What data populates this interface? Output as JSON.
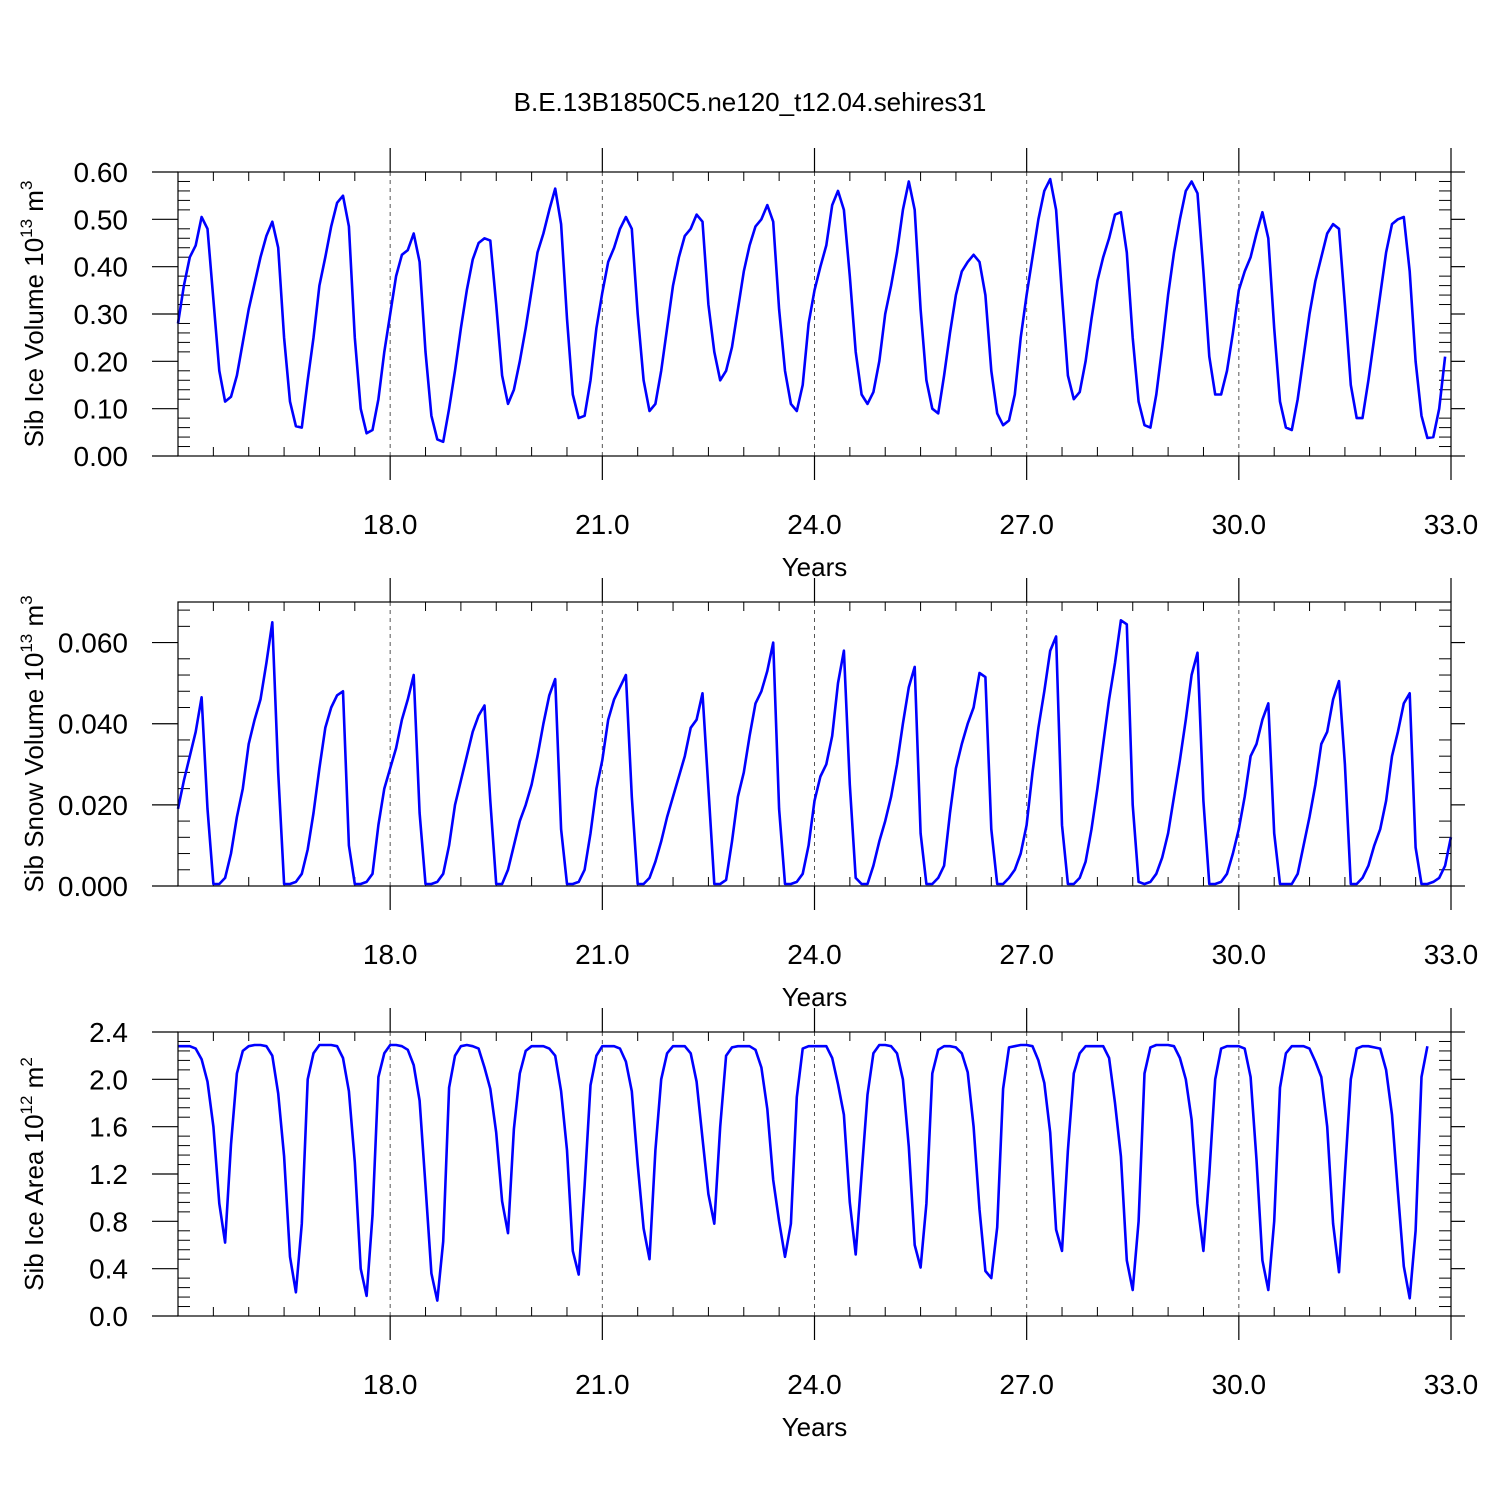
{
  "figure": {
    "title": "B.E.13B1850C5.ne120_t12.04.sehires31"
  },
  "chart_data": [
    {
      "type": "line",
      "ylabel": "Sib Ice Volume 10",
      "ylabel_exp": "13",
      "ylabel_unit": " m",
      "ylabel_unit_exp": "3",
      "xlabel": "Years",
      "xlim": [
        15.0,
        33.0
      ],
      "ylim": [
        0.0,
        0.6
      ],
      "xticks": [
        18.0,
        21.0,
        24.0,
        27.0,
        30.0,
        33.0
      ],
      "xtick_labels": [
        "18.0",
        "21.0",
        "24.0",
        "27.0",
        "30.0",
        "33.0"
      ],
      "yticks": [
        0.0,
        0.1,
        0.2,
        0.3,
        0.4,
        0.5,
        0.6
      ],
      "ytick_labels": [
        "0.00",
        "0.10",
        "0.20",
        "0.30",
        "0.40",
        "0.50",
        "0.60"
      ],
      "grid": "vertical dashed at major x ticks",
      "series": [
        {
          "color": "#0000ff",
          "x_start": 15.0,
          "x_step": 0.08333,
          "values": [
            0.28,
            0.36,
            0.42,
            0.445,
            0.505,
            0.48,
            0.33,
            0.18,
            0.115,
            0.125,
            0.17,
            0.24,
            0.31,
            0.365,
            0.42,
            0.465,
            0.495,
            0.44,
            0.25,
            0.115,
            0.063,
            0.06,
            0.16,
            0.25,
            0.36,
            0.42,
            0.485,
            0.535,
            0.55,
            0.485,
            0.25,
            0.1,
            0.048,
            0.055,
            0.12,
            0.22,
            0.3,
            0.38,
            0.425,
            0.435,
            0.47,
            0.41,
            0.22,
            0.085,
            0.035,
            0.03,
            0.1,
            0.18,
            0.27,
            0.35,
            0.415,
            0.45,
            0.46,
            0.455,
            0.32,
            0.17,
            0.11,
            0.14,
            0.2,
            0.27,
            0.35,
            0.43,
            0.47,
            0.52,
            0.565,
            0.49,
            0.29,
            0.13,
            0.08,
            0.085,
            0.16,
            0.27,
            0.345,
            0.41,
            0.44,
            0.48,
            0.505,
            0.48,
            0.3,
            0.16,
            0.095,
            0.11,
            0.18,
            0.27,
            0.36,
            0.42,
            0.465,
            0.48,
            0.51,
            0.495,
            0.32,
            0.22,
            0.16,
            0.18,
            0.23,
            0.31,
            0.39,
            0.445,
            0.485,
            0.5,
            0.53,
            0.495,
            0.31,
            0.18,
            0.11,
            0.095,
            0.15,
            0.28,
            0.35,
            0.4,
            0.445,
            0.53,
            0.56,
            0.52,
            0.38,
            0.22,
            0.13,
            0.11,
            0.135,
            0.2,
            0.3,
            0.36,
            0.43,
            0.52,
            0.58,
            0.52,
            0.31,
            0.16,
            0.1,
            0.09,
            0.17,
            0.26,
            0.34,
            0.39,
            0.41,
            0.425,
            0.41,
            0.34,
            0.18,
            0.09,
            0.065,
            0.075,
            0.13,
            0.25,
            0.34,
            0.42,
            0.5,
            0.56,
            0.585,
            0.52,
            0.34,
            0.17,
            0.12,
            0.135,
            0.2,
            0.29,
            0.37,
            0.42,
            0.46,
            0.51,
            0.515,
            0.43,
            0.25,
            0.115,
            0.065,
            0.06,
            0.13,
            0.23,
            0.34,
            0.43,
            0.5,
            0.56,
            0.58,
            0.555,
            0.39,
            0.21,
            0.13,
            0.13,
            0.18,
            0.26,
            0.35,
            0.39,
            0.42,
            0.47,
            0.515,
            0.46,
            0.27,
            0.115,
            0.06,
            0.055,
            0.12,
            0.21,
            0.3,
            0.37,
            0.42,
            0.47,
            0.49,
            0.48,
            0.32,
            0.15,
            0.08,
            0.08,
            0.16,
            0.25,
            0.34,
            0.43,
            0.49,
            0.5,
            0.505,
            0.39,
            0.2,
            0.085,
            0.038,
            0.04,
            0.1,
            0.21
          ]
        }
      ]
    },
    {
      "type": "line",
      "ylabel": "Sib Snow Volume 10",
      "ylabel_exp": "13",
      "ylabel_unit": " m",
      "ylabel_unit_exp": "3",
      "xlabel": "Years",
      "xlim": [
        15.0,
        33.0
      ],
      "ylim": [
        0.0,
        0.07
      ],
      "xticks": [
        18.0,
        21.0,
        24.0,
        27.0,
        30.0,
        33.0
      ],
      "xtick_labels": [
        "18.0",
        "21.0",
        "24.0",
        "27.0",
        "30.0",
        "33.0"
      ],
      "yticks": [
        0.0,
        0.02,
        0.04,
        0.06
      ],
      "ytick_labels": [
        "0.000",
        "0.020",
        "0.040",
        "0.060"
      ],
      "grid": "vertical dashed at major x ticks",
      "series": [
        {
          "color": "#0000ff",
          "x_start": 15.0,
          "x_step": 0.08333,
          "values": [
            0.019,
            0.026,
            0.032,
            0.038,
            0.0465,
            0.019,
            0.0005,
            0.0005,
            0.002,
            0.008,
            0.017,
            0.024,
            0.035,
            0.041,
            0.046,
            0.055,
            0.065,
            0.028,
            0.0005,
            0.0005,
            0.001,
            0.003,
            0.009,
            0.018,
            0.029,
            0.039,
            0.044,
            0.047,
            0.048,
            0.01,
            0.0005,
            0.0005,
            0.001,
            0.003,
            0.015,
            0.024,
            0.029,
            0.034,
            0.041,
            0.046,
            0.052,
            0.018,
            0.0005,
            0.0005,
            0.001,
            0.003,
            0.01,
            0.02,
            0.026,
            0.032,
            0.038,
            0.042,
            0.0445,
            0.021,
            0.0005,
            0.0005,
            0.004,
            0.01,
            0.016,
            0.02,
            0.025,
            0.032,
            0.04,
            0.047,
            0.051,
            0.014,
            0.0005,
            0.0005,
            0.001,
            0.004,
            0.013,
            0.024,
            0.031,
            0.041,
            0.046,
            0.049,
            0.052,
            0.022,
            0.0005,
            0.0005,
            0.002,
            0.006,
            0.011,
            0.017,
            0.022,
            0.027,
            0.032,
            0.039,
            0.041,
            0.0475,
            0.024,
            0.0005,
            0.0005,
            0.0015,
            0.011,
            0.022,
            0.028,
            0.037,
            0.045,
            0.048,
            0.053,
            0.06,
            0.019,
            0.0005,
            0.0005,
            0.001,
            0.003,
            0.01,
            0.021,
            0.027,
            0.03,
            0.037,
            0.05,
            0.058,
            0.025,
            0.002,
            0.0005,
            0.0005,
            0.005,
            0.011,
            0.016,
            0.022,
            0.03,
            0.04,
            0.049,
            0.054,
            0.013,
            0.0005,
            0.0005,
            0.002,
            0.005,
            0.018,
            0.029,
            0.035,
            0.04,
            0.044,
            0.0525,
            0.0515,
            0.014,
            0.0005,
            0.0005,
            0.002,
            0.004,
            0.008,
            0.015,
            0.028,
            0.039,
            0.048,
            0.058,
            0.0615,
            0.015,
            0.0005,
            0.0005,
            0.002,
            0.006,
            0.014,
            0.024,
            0.035,
            0.046,
            0.055,
            0.0655,
            0.0645,
            0.02,
            0.001,
            0.0005,
            0.001,
            0.003,
            0.007,
            0.013,
            0.022,
            0.031,
            0.041,
            0.052,
            0.0575,
            0.021,
            0.0005,
            0.0005,
            0.001,
            0.003,
            0.008,
            0.014,
            0.022,
            0.032,
            0.035,
            0.041,
            0.045,
            0.013,
            0.0005,
            0.0005,
            0.0005,
            0.003,
            0.01,
            0.017,
            0.025,
            0.035,
            0.038,
            0.046,
            0.0505,
            0.03,
            0.0005,
            0.0005,
            0.002,
            0.005,
            0.01,
            0.014,
            0.021,
            0.032,
            0.038,
            0.045,
            0.0475,
            0.0095,
            0.0005,
            0.0005,
            0.001,
            0.002,
            0.005,
            0.012
          ]
        }
      ]
    },
    {
      "type": "line",
      "ylabel": "Sib Ice Area 10",
      "ylabel_exp": "12",
      "ylabel_unit": " m",
      "ylabel_unit_exp": "2",
      "xlabel": "Years",
      "xlim": [
        15.0,
        33.0
      ],
      "ylim": [
        0.0,
        2.4
      ],
      "xticks": [
        18.0,
        21.0,
        24.0,
        27.0,
        30.0,
        33.0
      ],
      "xtick_labels": [
        "18.0",
        "21.0",
        "24.0",
        "27.0",
        "30.0",
        "33.0"
      ],
      "yticks": [
        0.0,
        0.4,
        0.8,
        1.2,
        1.6,
        2.0,
        2.4
      ],
      "ytick_labels": [
        "0.0",
        "0.4",
        "0.8",
        "1.2",
        "1.6",
        "2.0",
        "2.4"
      ],
      "grid": "vertical dashed at major x ticks",
      "series": [
        {
          "color": "#0000ff",
          "x_start": 15.0,
          "x_step": 0.08333,
          "values": [
            2.28,
            2.28,
            2.28,
            2.26,
            2.17,
            1.98,
            1.6,
            0.95,
            0.62,
            1.45,
            2.05,
            2.24,
            2.28,
            2.29,
            2.29,
            2.28,
            2.2,
            1.88,
            1.35,
            0.5,
            0.2,
            0.78,
            2.0,
            2.22,
            2.29,
            2.29,
            2.29,
            2.28,
            2.18,
            1.9,
            1.3,
            0.4,
            0.17,
            0.85,
            2.02,
            2.22,
            2.29,
            2.29,
            2.28,
            2.25,
            2.12,
            1.82,
            1.1,
            0.36,
            0.13,
            0.63,
            1.93,
            2.2,
            2.28,
            2.29,
            2.28,
            2.26,
            2.1,
            1.92,
            1.55,
            0.97,
            0.7,
            1.58,
            2.05,
            2.24,
            2.28,
            2.28,
            2.28,
            2.26,
            2.2,
            1.9,
            1.4,
            0.55,
            0.35,
            1.1,
            1.95,
            2.2,
            2.28,
            2.28,
            2.28,
            2.26,
            2.15,
            1.9,
            1.28,
            0.74,
            0.48,
            1.4,
            2.0,
            2.22,
            2.28,
            2.28,
            2.28,
            2.22,
            1.98,
            1.5,
            1.03,
            0.78,
            1.6,
            2.2,
            2.27,
            2.28,
            2.28,
            2.28,
            2.25,
            2.1,
            1.75,
            1.15,
            0.8,
            0.5,
            0.78,
            1.85,
            2.26,
            2.28,
            2.28,
            2.28,
            2.28,
            2.18,
            1.96,
            1.7,
            0.96,
            0.52,
            1.2,
            1.87,
            2.22,
            2.29,
            2.29,
            2.28,
            2.22,
            2.0,
            1.43,
            0.6,
            0.41,
            0.95,
            2.05,
            2.25,
            2.28,
            2.28,
            2.27,
            2.22,
            2.06,
            1.6,
            0.9,
            0.38,
            0.32,
            0.75,
            1.92,
            2.27,
            2.28,
            2.29,
            2.29,
            2.28,
            2.16,
            1.97,
            1.55,
            0.73,
            0.55,
            1.4,
            2.05,
            2.22,
            2.28,
            2.28,
            2.28,
            2.28,
            2.18,
            1.8,
            1.35,
            0.47,
            0.22,
            0.8,
            2.05,
            2.27,
            2.29,
            2.29,
            2.29,
            2.28,
            2.18,
            2.0,
            1.66,
            0.95,
            0.55,
            1.2,
            2.0,
            2.26,
            2.28,
            2.28,
            2.28,
            2.26,
            2.02,
            1.32,
            0.47,
            0.22,
            0.8,
            1.93,
            2.22,
            2.28,
            2.28,
            2.28,
            2.26,
            2.15,
            2.02,
            1.6,
            0.78,
            0.37,
            1.2,
            2.0,
            2.26,
            2.28,
            2.28,
            2.27,
            2.26,
            2.08,
            1.7,
            1.05,
            0.42,
            0.15,
            0.72,
            2.02,
            2.28
          ]
        }
      ]
    }
  ]
}
